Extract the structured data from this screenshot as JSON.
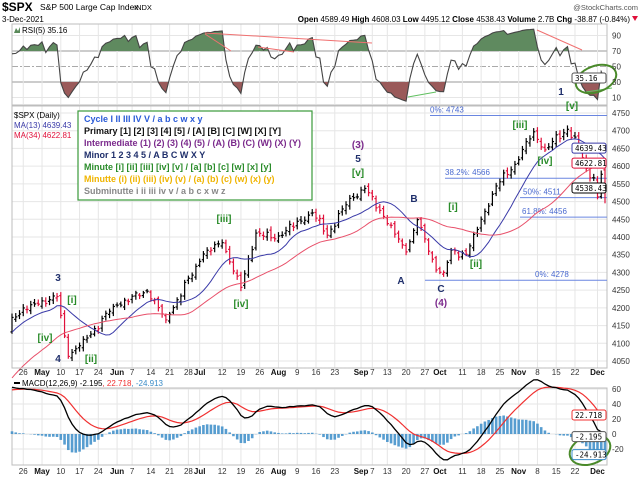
{
  "header": {
    "symbol": "$SPX",
    "name": "S&P 500 Large Cap Index",
    "exchange": "INDX",
    "watermark": "@StockCharts.com",
    "date": "3-Dec-2021",
    "open_label": "Open",
    "open": "4589.49",
    "high_label": "High",
    "high": "4608.03",
    "low_label": "Low",
    "low": "4495.12",
    "close_label": "Close",
    "close": "4538.43",
    "volume_label": "Volume",
    "volume": "2.7B",
    "chg_label": "Chg",
    "chg": "-38.87 (-0.84%)",
    "chg_icon": "down-triangle-icon"
  },
  "rsi": {
    "label": "RSI(5) 35.16",
    "value": "35.16",
    "ticks": [
      "90",
      "70",
      "50",
      "30",
      "10"
    ]
  },
  "price_panel": {
    "label": "$SPX (Daily)",
    "ma13_label": "MA(13) 4639.43",
    "ma34_label": "MA(34) 4622.81",
    "ma13_value": "4639.43",
    "ma34_value": "4622.81",
    "close_value": "4538.43",
    "ticks": [
      "4750",
      "4700",
      "4650",
      "4600",
      "4550",
      "4500",
      "4450",
      "4400",
      "4350",
      "4300",
      "4250",
      "4200",
      "4150",
      "4100",
      "4050"
    ]
  },
  "legend": [
    "Cycle I II III IV V / a b c w x y",
    "Primary [1] [2] [3] [4] [5] / [A] [B] [C] [W] [X] [Y]",
    "Intermediate (1) (2) (3) (4) (5) / (A) (B) (C) (W) (X) (Y)",
    "Minor 1 2 3 4 5 / A B C W X Y",
    "Minute [i] [ii] [iii] [iv] [v] / [a] [b] [c] [w] [x] [y]",
    "Minutte (i) (ii) (iii) (iv) (v) / (a) (b) (c) (w) (x) (y)",
    "Subminutte i ii iii iv v / a b c x w z"
  ],
  "fib": [
    {
      "label": "0%: 4743",
      "price": 4743
    },
    {
      "label": "38.2%: 4566",
      "price": 4566
    },
    {
      "label": "50%: 4511",
      "price": 4511
    },
    {
      "label": "61.8%: 4456",
      "price": 4456
    },
    {
      "label": "0%: 4278",
      "price": 4278
    }
  ],
  "waves": [
    "3",
    "[i]",
    "[iv]",
    "4",
    "[ii]",
    "[iii]",
    "[iv]",
    "(3)",
    "5",
    "[v]",
    "A",
    "B",
    "[i]",
    "[ii]",
    "C",
    "(4)",
    "[iii]",
    "[iv]",
    "[v]",
    "1"
  ],
  "macd": {
    "label": "MACD(12,26,9) -2.195",
    "signal_label": ", 22.718",
    "hist_label": ", -24.913",
    "macd_value": "-2.195",
    "signal_value": "22.718",
    "hist_value": "-24.913",
    "ticks": [
      "60",
      "40",
      "20",
      "0",
      "-20"
    ]
  },
  "x_ticks": [
    {
      "label": "26",
      "date": "2021-04-26"
    },
    {
      "label": "May",
      "date": "2021-05-03",
      "bold": true
    },
    {
      "label": "10",
      "date": "2021-05-10"
    },
    {
      "label": "17",
      "date": "2021-05-17"
    },
    {
      "label": "24",
      "date": "2021-05-24"
    },
    {
      "label": "Jun",
      "date": "2021-06-01",
      "bold": true
    },
    {
      "label": "7",
      "date": "2021-06-07"
    },
    {
      "label": "14",
      "date": "2021-06-14"
    },
    {
      "label": "21",
      "date": "2021-06-21"
    },
    {
      "label": "28",
      "date": "2021-06-28"
    },
    {
      "label": "Jul",
      "date": "2021-07-01",
      "bold": true
    },
    {
      "label": "12",
      "date": "2021-07-12"
    },
    {
      "label": "19",
      "date": "2021-07-19"
    },
    {
      "label": "26",
      "date": "2021-07-26"
    },
    {
      "label": "Aug",
      "date": "2021-08-02",
      "bold": true
    },
    {
      "label": "9",
      "date": "2021-08-09"
    },
    {
      "label": "16",
      "date": "2021-08-16"
    },
    {
      "label": "23",
      "date": "2021-08-23"
    },
    {
      "label": "Sep",
      "date": "2021-09-01",
      "bold": true
    },
    {
      "label": "7",
      "date": "2021-09-07"
    },
    {
      "label": "13",
      "date": "2021-09-13"
    },
    {
      "label": "20",
      "date": "2021-09-20"
    },
    {
      "label": "27",
      "date": "2021-09-27"
    },
    {
      "label": "Oct",
      "date": "2021-10-01",
      "bold": true
    },
    {
      "label": "11",
      "date": "2021-10-11"
    },
    {
      "label": "18",
      "date": "2021-10-18"
    },
    {
      "label": "25",
      "date": "2021-10-25"
    },
    {
      "label": "Nov",
      "date": "2021-11-01",
      "bold": true
    },
    {
      "label": "8",
      "date": "2021-11-08"
    },
    {
      "label": "15",
      "date": "2021-11-15"
    },
    {
      "label": "22",
      "date": "2021-11-22"
    },
    {
      "label": "Dec",
      "date": "2021-12-01",
      "bold": true
    }
  ],
  "chart_data": {
    "type": "ohlc",
    "title": "$SPX S&P 500 Large Cap Index INDX",
    "ylim": [
      4050,
      4750
    ],
    "grid": true,
    "up_color": "#000000",
    "down_color": "#e0103a",
    "ma13_color": "#3a3aa8",
    "ma34_color": "#e8506a",
    "closes_approx": [
      [
        "2021-04-21",
        4173
      ],
      [
        "2021-04-29",
        4211
      ],
      [
        "2021-05-07",
        4232
      ],
      [
        "2021-05-12",
        4063
      ],
      [
        "2021-05-19",
        4115
      ],
      [
        "2021-05-28",
        4204
      ],
      [
        "2021-06-11",
        4247
      ],
      [
        "2021-06-18",
        4166
      ],
      [
        "2021-07-02",
        4352
      ],
      [
        "2021-07-12",
        4384
      ],
      [
        "2021-07-19",
        4258
      ],
      [
        "2021-07-23",
        4411
      ],
      [
        "2021-07-30",
        4395
      ],
      [
        "2021-08-13",
        4468
      ],
      [
        "2021-08-19",
        4405
      ],
      [
        "2021-08-27",
        4509
      ],
      [
        "2021-09-02",
        4537
      ],
      [
        "2021-09-10",
        4458
      ],
      [
        "2021-09-20",
        4358
      ],
      [
        "2021-09-23",
        4449
      ],
      [
        "2021-09-30",
        4307
      ],
      [
        "2021-10-04",
        4300
      ],
      [
        "2021-10-06",
        4363
      ],
      [
        "2021-10-12",
        4351
      ],
      [
        "2021-10-22",
        4544
      ],
      [
        "2021-10-29",
        4605
      ],
      [
        "2021-11-05",
        4697
      ],
      [
        "2021-11-10",
        4646
      ],
      [
        "2021-11-18",
        4704
      ],
      [
        "2021-11-22",
        4682
      ],
      [
        "2021-11-26",
        4594
      ],
      [
        "2021-11-30",
        4567
      ],
      [
        "2021-12-01",
        4513
      ],
      [
        "2021-12-02",
        4577
      ],
      [
        "2021-12-03",
        4538.43
      ]
    ],
    "last_bar": {
      "open": 4589.49,
      "high": 4608.03,
      "low": 4495.12,
      "close": 4538.43
    },
    "rsi_ylim": [
      0,
      100
    ],
    "macd_colors": {
      "macd": "#000000",
      "signal": "#f03030",
      "histogram": "#3a8cc8"
    }
  }
}
